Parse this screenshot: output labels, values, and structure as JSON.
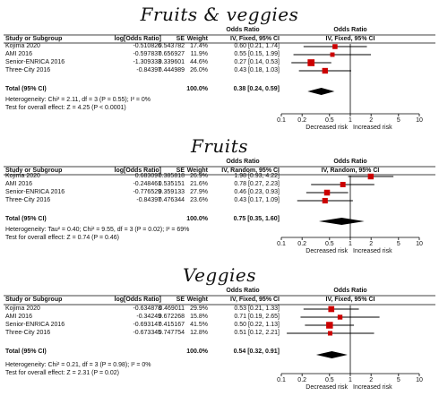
{
  "panels": [
    {
      "title": "Fruits & veggies",
      "columns": {
        "study": "Study or Subgroup",
        "log": "log[Odds Ratio]",
        "se": "SE",
        "weight": "Weight",
        "or_header": "Odds Ratio",
        "or_sub": "IV, Fixed, 95% CI",
        "plot_header": "Odds Ratio",
        "plot_sub": "IV, Fixed, 95% CI"
      },
      "rows": [
        {
          "study": "Kojima 2020",
          "log": "-0.510826",
          "se": "0.543782",
          "weight": "17.4%",
          "ci": "0.60 [0.21, 1.74]"
        },
        {
          "study": "AMI 2016",
          "log": "-0.597837",
          "se": "0.656927",
          "weight": "11.9%",
          "ci": "0.55 [0.15, 1.99]"
        },
        {
          "study": "Senior-ENRICA 2016",
          "log": "-1.309333",
          "se": "0.339601",
          "weight": "44.6%",
          "ci": "0.27 [0.14, 0.53]"
        },
        {
          "study": "Three-City 2016",
          "log": "-0.84397",
          "se": "0.444989",
          "weight": "26.0%",
          "ci": "0.43 [0.18, 1.03]"
        }
      ],
      "total": {
        "label": "Total (95% CI)",
        "weight": "100.0%",
        "ci": "0.38 [0.24, 0.59]"
      },
      "heterogeneity": "Heterogeneity: Chi² = 2.11, df = 3 (P = 0.55); I² = 0%",
      "overall": "Test for overall effect: Z = 4.25 (P < 0.0001)",
      "axis": {
        "ticks": [
          0.1,
          0.2,
          0.5,
          1,
          2,
          5,
          10
        ],
        "tick_labels": [
          "0.1",
          "0.2",
          "0.5",
          "1",
          "2",
          "5",
          "10"
        ],
        "left_label": "Decreased risk",
        "right_label": "Increased risk"
      }
    },
    {
      "title": "Fruits",
      "columns": {
        "study": "Study or Subgroup",
        "log": "log[Odds Ratio]",
        "se": "SE",
        "weight": "Weight",
        "or_header": "Odds Ratio",
        "or_sub": "IV, Random, 95% CI",
        "plot_header": "Odds Ratio",
        "plot_sub": "IV, Random, 95% CI"
      },
      "rows": [
        {
          "study": "Kojima 2020",
          "log": "0.683097",
          "se": "0.385818",
          "weight": "26.9%",
          "ci": "1.98 [0.93, 4.22]"
        },
        {
          "study": "AMI 2016",
          "log": "-0.248461",
          "se": "0.535151",
          "weight": "21.6%",
          "ci": "0.78 [0.27, 2.23]"
        },
        {
          "study": "Senior-ENRICA 2016",
          "log": "-0.776529",
          "se": "0.359133",
          "weight": "27.9%",
          "ci": "0.46 [0.23, 0.93]"
        },
        {
          "study": "Three-City 2016",
          "log": "-0.84397",
          "se": "0.476344",
          "weight": "23.6%",
          "ci": "0.43 [0.17, 1.09]"
        }
      ],
      "total": {
        "label": "Total (95% CI)",
        "weight": "100.0%",
        "ci": "0.75 [0.35, 1.60]"
      },
      "heterogeneity": "Heterogeneity: Tau² = 0.40; Chi² = 9.55, df = 3 (P = 0.02); I² = 69%",
      "overall": "Test for overall effect: Z = 0.74 (P = 0.46)",
      "axis": {
        "ticks": [
          0.1,
          0.2,
          0.5,
          1,
          2,
          5,
          10
        ],
        "tick_labels": [
          "0.1",
          "0.2",
          "0.5",
          "1",
          "2",
          "5",
          "10"
        ],
        "left_label": "Decreased risk",
        "right_label": "Increased risk"
      }
    },
    {
      "title": "Veggies",
      "columns": {
        "study": "Study or Subgroup",
        "log": "log[Odds Ratio]",
        "se": "SE",
        "weight": "Weight",
        "or_header": "Odds Ratio",
        "or_sub": "IV, Fixed, 95% CI",
        "plot_header": "Odds Ratio",
        "plot_sub": "IV, Fixed, 95% CI"
      },
      "rows": [
        {
          "study": "Kojima 2020",
          "log": "-0.634878",
          "se": "0.469011",
          "weight": "29.9%",
          "ci": "0.53 [0.21, 1.33]"
        },
        {
          "study": "AMI 2016",
          "log": "-0.34249",
          "se": "0.672268",
          "weight": "15.8%",
          "ci": "0.71 [0.19, 2.65]"
        },
        {
          "study": "Senior-ENRICA 2016",
          "log": "-0.693147",
          "se": "0.415167",
          "weight": "41.5%",
          "ci": "0.50 [0.22, 1.13]"
        },
        {
          "study": "Three-City 2016",
          "log": "-0.673345",
          "se": "0.747754",
          "weight": "12.8%",
          "ci": "0.51 [0.12, 2.21]"
        }
      ],
      "total": {
        "label": "Total (95% CI)",
        "weight": "100.0%",
        "ci": "0.54 [0.32, 0.91]"
      },
      "heterogeneity": "Heterogeneity: Chi² = 0.21, df = 3 (P = 0.98); I² = 0%",
      "overall": "Test for overall effect: Z = 2.31 (P = 0.02)",
      "axis": {
        "ticks": [
          0.1,
          0.2,
          0.5,
          1,
          2,
          5,
          10
        ],
        "tick_labels": [
          "0.1",
          "0.2",
          "0.5",
          "1",
          "2",
          "5",
          "10"
        ],
        "left_label": "Decreased risk",
        "right_label": "Increased risk"
      }
    }
  ],
  "colors": {
    "square": "#cc0000",
    "diamond": "#000000",
    "line": "#000000"
  },
  "chart_data": [
    {
      "type": "forest",
      "title": "Fruits & veggies",
      "categories": [
        "Kojima 2020",
        "AMI 2016",
        "Senior-ENRICA 2016",
        "Three-City 2016"
      ],
      "or": [
        0.6,
        0.55,
        0.27,
        0.43
      ],
      "ci_low": [
        0.21,
        0.15,
        0.14,
        0.18
      ],
      "ci_high": [
        1.74,
        1.99,
        0.53,
        1.03
      ],
      "weight_pct": [
        17.4,
        11.9,
        44.6,
        26.0
      ],
      "pooled": {
        "or": 0.38,
        "ci_low": 0.24,
        "ci_high": 0.59
      },
      "xscale": "log",
      "xlim": [
        0.1,
        10
      ]
    },
    {
      "type": "forest",
      "title": "Fruits",
      "categories": [
        "Kojima 2020",
        "AMI 2016",
        "Senior-ENRICA 2016",
        "Three-City 2016"
      ],
      "or": [
        1.98,
        0.78,
        0.46,
        0.43
      ],
      "ci_low": [
        0.93,
        0.27,
        0.23,
        0.17
      ],
      "ci_high": [
        4.22,
        2.23,
        0.93,
        1.09
      ],
      "weight_pct": [
        26.9,
        21.6,
        27.9,
        23.6
      ],
      "pooled": {
        "or": 0.75,
        "ci_low": 0.35,
        "ci_high": 1.6
      },
      "xscale": "log",
      "xlim": [
        0.1,
        10
      ]
    },
    {
      "type": "forest",
      "title": "Veggies",
      "categories": [
        "Kojima 2020",
        "AMI 2016",
        "Senior-ENRICA 2016",
        "Three-City 2016"
      ],
      "or": [
        0.53,
        0.71,
        0.5,
        0.51
      ],
      "ci_low": [
        0.21,
        0.19,
        0.22,
        0.12
      ],
      "ci_high": [
        1.33,
        2.65,
        1.13,
        2.21
      ],
      "weight_pct": [
        29.9,
        15.8,
        41.5,
        12.8
      ],
      "pooled": {
        "or": 0.54,
        "ci_low": 0.32,
        "ci_high": 0.91
      },
      "xscale": "log",
      "xlim": [
        0.1,
        10
      ]
    }
  ]
}
